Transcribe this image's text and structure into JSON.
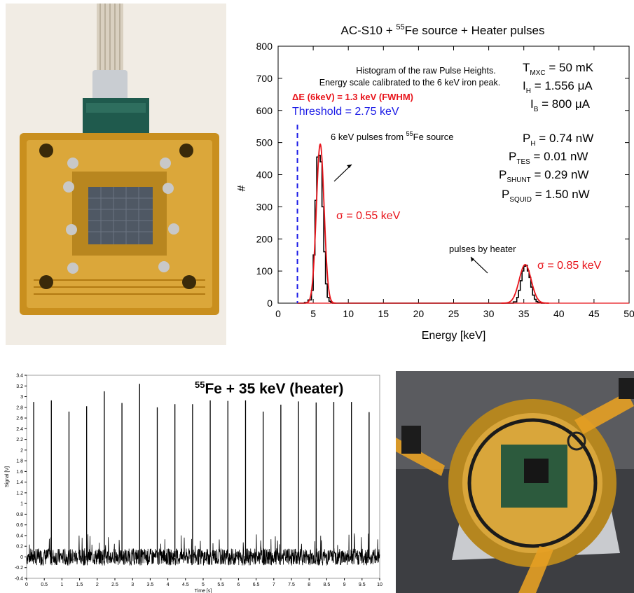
{
  "histogram": {
    "title_prefix": "AC-S10 + ",
    "title_super": "55",
    "title_suffix": "Fe source + Heater pulses",
    "note_line1": "Histogram of the raw Pulse Heights.",
    "note_line2": "Energy scale calibrated to the 6 keV iron peak.",
    "resolution": "ΔE (6keV) = 1.3 keV (FWHM)",
    "threshold": "Threshold = 2.75 keV",
    "sigma1": "σ = 0.55 keV",
    "sigma2": "σ = 0.85 keV",
    "fe_pulses_prefix": "6 keV pulses from ",
    "fe_pulses_super": "55",
    "fe_pulses_suffix": "Fe source",
    "heater_pulses": "pulses by heater",
    "params": {
      "t_mxc_main": "T",
      "t_mxc_sub": "MXC",
      "t_mxc_val": " = 50 mK",
      "i_h_main": "I",
      "i_h_sub": "H",
      "i_h_val": " = 1.556 μA",
      "i_b_main": "I",
      "i_b_sub": "B",
      "i_b_val": " = 800 μA",
      "p_h_main": "P",
      "p_h_sub": "H",
      "p_h_val": " = 0.74 nW",
      "p_tes_main": "P",
      "p_tes_sub": "TES",
      "p_tes_val": " = 0.01 nW",
      "p_shunt_main": "P",
      "p_shunt_sub": "SHUNT",
      "p_shunt_val": " = 0.29 nW",
      "p_squid_main": "P",
      "p_squid_sub": "SQUID",
      "p_squid_val": " = 1.50 nW"
    },
    "colors": {
      "red": "#e8141b",
      "blue": "#1a1ae6",
      "black": "#000000"
    }
  },
  "trace": {
    "title_super": "55",
    "title_rest": "Fe + 35 keV (heater)",
    "colors": {
      "trace": "#000000"
    }
  },
  "chart_data": [
    {
      "type": "line",
      "title": "AC-S10 + 55Fe source + Heater pulses",
      "xlabel": "Energy [keV]",
      "ylabel": "#",
      "xlim": [
        0,
        50
      ],
      "ylim": [
        0,
        800
      ],
      "xticks": [
        "0",
        "5",
        "10",
        "15",
        "20",
        "25",
        "30",
        "35",
        "40",
        "45",
        "50"
      ],
      "yticks": [
        "0",
        "100",
        "200",
        "300",
        "400",
        "500",
        "600",
        "700",
        "800"
      ],
      "threshold_keV": 2.75,
      "series": [
        {
          "name": "",
          "style": "black-steps",
          "x": [
            2.75,
            3.25,
            3.75,
            4.25,
            4.75,
            5.0,
            5.25,
            5.5,
            5.75,
            6.0,
            6.25,
            6.5,
            6.75,
            7.0,
            7.25,
            7.5,
            7.75,
            8.25,
            8.75,
            33.0,
            33.5,
            34.0,
            34.25,
            34.5,
            34.75,
            35.0,
            35.25,
            35.5,
            35.75,
            36.0,
            36.25,
            36.5,
            36.75,
            37.0,
            37.5,
            38.0
          ],
          "y": [
            0,
            0,
            2,
            10,
            40,
            150,
            320,
            455,
            460,
            440,
            300,
            160,
            60,
            18,
            6,
            2,
            0,
            0,
            0,
            0,
            4,
            18,
            40,
            70,
            100,
            115,
            118,
            100,
            80,
            50,
            25,
            12,
            5,
            2,
            0,
            0
          ]
        },
        {
          "name": "",
          "style": "red-gaussian-fit",
          "peaks": [
            {
              "center": 6.0,
              "sigma": 0.55,
              "amplitude": 495
            },
            {
              "center": 35.2,
              "sigma": 0.85,
              "amplitude": 120
            }
          ]
        }
      ]
    },
    {
      "type": "line",
      "xlabel": "Time [s]",
      "ylabel": "Signal [V]",
      "xlim": [
        0,
        10
      ],
      "ylim": [
        -0.4,
        3.4
      ],
      "xticks": [
        "0",
        "0.5",
        "1",
        "1.5",
        "2",
        "2.5",
        "3",
        "3.5",
        "4",
        "4.5",
        "5",
        "5.5",
        "6",
        "6.5",
        "7",
        "7.5",
        "8",
        "8.5",
        "9",
        "9.5",
        "10"
      ],
      "yticks": [
        "-0.4",
        "-0.2",
        "0",
        "0.2",
        "0.4",
        "0.6",
        "0.8",
        "1",
        "1.2",
        "1.4",
        "1.6",
        "1.8",
        "2",
        "2.2",
        "2.4",
        "2.6",
        "2.8",
        "3",
        "3.2",
        "3.4"
      ],
      "pulses": {
        "t": [
          0.2,
          0.7,
          1.2,
          1.7,
          2.2,
          2.7,
          3.2,
          3.7,
          4.2,
          4.7,
          5.2,
          5.7,
          6.2,
          6.7,
          7.2,
          7.7,
          8.2,
          8.7,
          9.2,
          9.7
        ],
        "v": [
          2.9,
          2.93,
          2.72,
          2.82,
          3.1,
          2.88,
          3.24,
          2.8,
          2.86,
          2.86,
          2.93,
          2.92,
          2.93,
          2.72,
          2.85,
          2.91,
          2.89,
          2.9,
          2.9,
          2.71
        ]
      },
      "noise_band": [
        -0.2,
        0.2
      ]
    }
  ]
}
